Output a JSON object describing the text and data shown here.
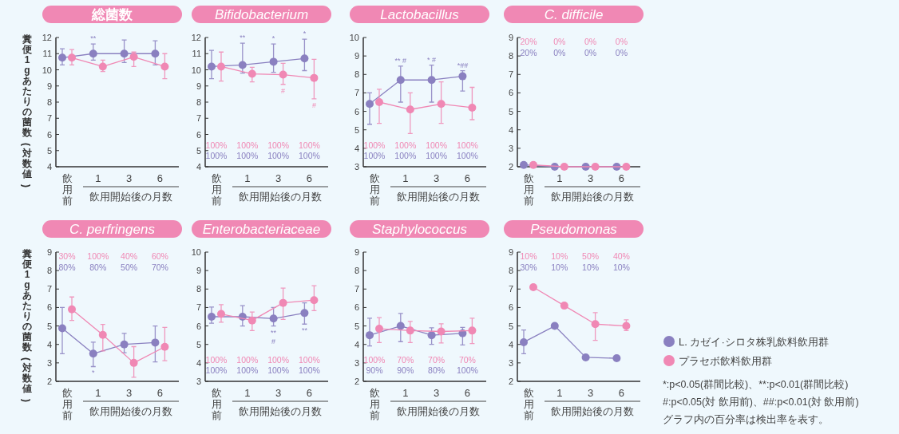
{
  "chart_data": [
    {
      "type": "line",
      "title": "総菌数",
      "ylabel": "糞便1gあたりの菌数(対数値)",
      "xlabel": "飲用開始後の月数",
      "categories": [
        "飲用前",
        "1",
        "3",
        "6"
      ],
      "ylim": [
        4,
        12
      ],
      "yticks": [
        4,
        5,
        6,
        7,
        8,
        9,
        10,
        11,
        12
      ],
      "series": [
        {
          "color": "#8a80c0",
          "marker": "circle",
          "values": [
            10.75,
            11.0,
            11.0,
            11.0
          ],
          "errors": [
            [
              10.3,
              11.3
            ],
            [
              10.6,
              11.6
            ],
            [
              10.45,
              11.85
            ],
            [
              10.3,
              11.8
            ]
          ]
        },
        {
          "color": "#f088b4",
          "marker": "circle",
          "values": [
            10.75,
            10.2,
            10.8,
            10.2
          ],
          "errors": [
            [
              10.3,
              11.25
            ],
            [
              9.9,
              10.6
            ],
            [
              10.2,
              11.1
            ],
            [
              9.45,
              11.0
            ]
          ]
        }
      ],
      "annotations": [
        {
          "text": "**",
          "x": "1",
          "y": 11.6
        }
      ]
    },
    {
      "type": "line",
      "title": "Bifidobacterium",
      "xlabel": "飲用開始後の月数",
      "categories": [
        "飲用前",
        "1",
        "3",
        "6"
      ],
      "ylim": [
        4,
        12
      ],
      "yticks": [
        4,
        5,
        6,
        7,
        8,
        9,
        10,
        11,
        12
      ],
      "series": [
        {
          "color": "#8a80c0",
          "marker": "circle",
          "values": [
            10.2,
            10.3,
            10.5,
            10.7
          ],
          "errors": [
            [
              9.45,
              11.2
            ],
            [
              9.8,
              11.65
            ],
            [
              9.85,
              11.6
            ],
            [
              9.95,
              11.9
            ]
          ]
        },
        {
          "color": "#f088b4",
          "marker": "circle",
          "values": [
            10.2,
            9.75,
            9.7,
            9.5
          ],
          "errors": [
            [
              9.3,
              11.1
            ],
            [
              9.25,
              10.15
            ],
            [
              9.1,
              10.4
            ],
            [
              8.2,
              10.65
            ]
          ]
        }
      ],
      "annotations": [
        {
          "text": "**",
          "x": "1",
          "y": 11.65
        },
        {
          "text": "*",
          "x": "3",
          "y": 11.6
        },
        {
          "text": "*",
          "x": "6",
          "y": 11.9
        },
        {
          "text": "#",
          "x": "3",
          "y": 9.1
        },
        {
          "text": "#",
          "x": "6",
          "y": 8.2
        },
        "100%",
        "100%",
        "100%",
        "100%",
        "100%",
        "100%",
        "100%",
        "100%"
      ]
    },
    {
      "type": "line",
      "title": "Lactobacillus",
      "xlabel": "飲用開始後の月数",
      "categories": [
        "飲用前",
        "1",
        "3",
        "6"
      ],
      "ylim": [
        3,
        10
      ],
      "yticks": [
        3,
        4,
        5,
        6,
        7,
        8,
        9,
        10
      ],
      "series": [
        {
          "color": "#8a80c0",
          "marker": "circle",
          "values": [
            6.4,
            7.7,
            7.7,
            7.9
          ],
          "errors": [
            [
              5.3,
              7.0
            ],
            [
              6.5,
              8.45
            ],
            [
              6.5,
              8.5
            ],
            [
              7.1,
              8.2
            ]
          ]
        },
        {
          "color": "#f088b4",
          "marker": "circle",
          "values": [
            6.5,
            6.1,
            6.4,
            6.2
          ],
          "errors": [
            [
              5.35,
              7.2
            ],
            [
              4.8,
              7.0
            ],
            [
              5.35,
              7.6
            ],
            [
              5.55,
              7.3
            ]
          ]
        }
      ],
      "annotations": [
        {
          "text": "** #",
          "x": "1",
          "y": 8.45
        },
        {
          "text": "* #",
          "x": "3",
          "y": 8.5
        },
        {
          "text": "*##",
          "x": "6",
          "y": 8.2
        },
        "100%",
        "100%",
        "100%",
        "100%",
        "100%",
        "100%",
        "100%",
        "100%"
      ]
    },
    {
      "type": "line",
      "title": "C. difficile",
      "xlabel": "飲用開始後の月数",
      "categories": [
        "飲用前",
        "1",
        "3",
        "6"
      ],
      "ylim": [
        2,
        9
      ],
      "yticks": [
        2,
        3,
        4,
        5,
        6,
        7,
        8,
        9
      ],
      "series": [
        {
          "color": "#8a80c0",
          "marker": "circle",
          "values": [
            2.1,
            2.0,
            2.0,
            2.0
          ]
        },
        {
          "color": "#f088b4",
          "marker": "circle",
          "values": [
            2.1,
            2.0,
            2.0,
            2.0
          ]
        }
      ],
      "annotations": [
        "20%",
        "0%",
        "0%",
        "0%",
        "20%",
        "0%",
        "0%",
        "0%"
      ]
    },
    {
      "type": "line",
      "title": "C. perfringens",
      "ylabel": "糞便1gあたりの菌数(対数値)",
      "xlabel": "飲用開始後の月数",
      "categories": [
        "飲用前",
        "1",
        "3",
        "6"
      ],
      "ylim": [
        2,
        9
      ],
      "yticks": [
        2,
        3,
        4,
        5,
        6,
        7,
        8,
        9
      ],
      "series": [
        {
          "color": "#8a80c0",
          "marker": "circle",
          "values": [
            4.87,
            3.5,
            4.0,
            4.1
          ],
          "errors": [
            [
              3.5,
              6.0
            ],
            [
              2.8,
              4.12
            ],
            [
              3.55,
              4.6
            ],
            [
              3.05,
              5.0
            ]
          ]
        },
        {
          "color": "#f088b4",
          "marker": "circle",
          "values": [
            5.9,
            4.52,
            3.0,
            3.87
          ],
          "errors": [
            [
              5.3,
              6.57
            ],
            [
              3.65,
              5.08
            ],
            [
              2.22,
              3.88
            ],
            [
              3.12,
              4.92
            ]
          ]
        }
      ],
      "annotations": [
        {
          "text": "*",
          "x": "1",
          "y": 2.8
        },
        "30%",
        "100%",
        "40%",
        "60%",
        "80%",
        "80%",
        "50%",
        "70%"
      ]
    },
    {
      "type": "line",
      "title": "Enterobacteriaceae",
      "xlabel": "飲用開始後の月数",
      "categories": [
        "飲用前",
        "1",
        "3",
        "6"
      ],
      "ylim": [
        3,
        10
      ],
      "yticks": [
        3,
        4,
        5,
        6,
        7,
        8,
        9,
        10
      ],
      "series": [
        {
          "color": "#8a80c0",
          "marker": "circle",
          "values": [
            6.5,
            6.5,
            6.4,
            6.7
          ],
          "errors": [
            [
              6.15,
              7.02
            ],
            [
              6.0,
              7.1
            ],
            [
              6.0,
              7.0
            ],
            [
              6.1,
              7.25
            ]
          ]
        },
        {
          "color": "#f088b4",
          "marker": "circle",
          "values": [
            6.65,
            6.3,
            7.25,
            7.4
          ],
          "errors": [
            [
              6.2,
              7.15
            ],
            [
              5.75,
              6.75
            ],
            [
              6.35,
              8.05
            ],
            [
              6.83,
              8.18
            ]
          ]
        }
      ],
      "annotations": [
        {
          "text": "**",
          "x": "3",
          "y": 6.0
        },
        {
          "text": "#",
          "x": "3",
          "y": 6.0
        },
        {
          "text": "**",
          "x": "6",
          "y": 6.1
        },
        "100%",
        "100%",
        "100%",
        "100%",
        "100%",
        "100%",
        "100%",
        "100%"
      ]
    },
    {
      "type": "line",
      "title": "Staphylococcus",
      "xlabel": "飲用開始後の月数",
      "categories": [
        "飲用前",
        "1",
        "3",
        "6"
      ],
      "ylim": [
        2,
        9
      ],
      "yticks": [
        2,
        3,
        4,
        5,
        6,
        7,
        8,
        9
      ],
      "series": [
        {
          "color": "#8a80c0",
          "marker": "circle",
          "values": [
            4.5,
            5.0,
            4.5,
            4.6
          ],
          "errors": [
            [
              3.92,
              5.42
            ],
            [
              4.15,
              5.68
            ],
            [
              4.0,
              4.9
            ],
            [
              3.97,
              4.92
            ]
          ]
        },
        {
          "color": "#f088b4",
          "marker": "circle",
          "values": [
            4.85,
            4.75,
            4.7,
            4.75
          ],
          "errors": [
            [
              4.1,
              5.45
            ],
            [
              4.1,
              5.25
            ],
            [
              4.08,
              5.12
            ],
            [
              4.05,
              5.42
            ]
          ]
        }
      ],
      "annotations": [
        "100%",
        "70%",
        "70%",
        "70%",
        "90%",
        "90%",
        "80%",
        "100%"
      ]
    },
    {
      "type": "line",
      "title": "Pseudomonas",
      "xlabel": "飲用開始後の月数",
      "categories": [
        "飲用前",
        "1",
        "3",
        "6"
      ],
      "ylim": [
        2,
        9
      ],
      "yticks": [
        2,
        3,
        4,
        5,
        6,
        7,
        8,
        9
      ],
      "legend": "right",
      "series": [
        {
          "name": "L. カゼイ·シロタ株乳飲料飲用群",
          "color": "#8a80c0",
          "marker": "circle",
          "values": [
            4.12,
            5.0,
            3.3,
            3.25
          ],
          "errors": [
            [
              3.5,
              4.78
            ],
            null,
            null,
            null
          ]
        },
        {
          "name": "プラセボ飲料飲用群",
          "color": "#f088b4",
          "marker": "circle",
          "values": [
            7.1,
            6.1,
            5.1,
            5.0
          ],
          "errors": [
            null,
            null,
            [
              4.22,
              5.72
            ],
            [
              4.75,
              5.33
            ]
          ]
        }
      ],
      "annotations": [
        "10%",
        "10%",
        "50%",
        "40%",
        "30%",
        "10%",
        "10%",
        "10%",
        "*:p<0.05(群間比較)、**:p<0.01(群間比較)",
        "#:p<0.05(対 飲用前)、##:p<0.01(対 飲用前)",
        "グラフ内の百分率は検出率を表す。"
      ]
    }
  ]
}
